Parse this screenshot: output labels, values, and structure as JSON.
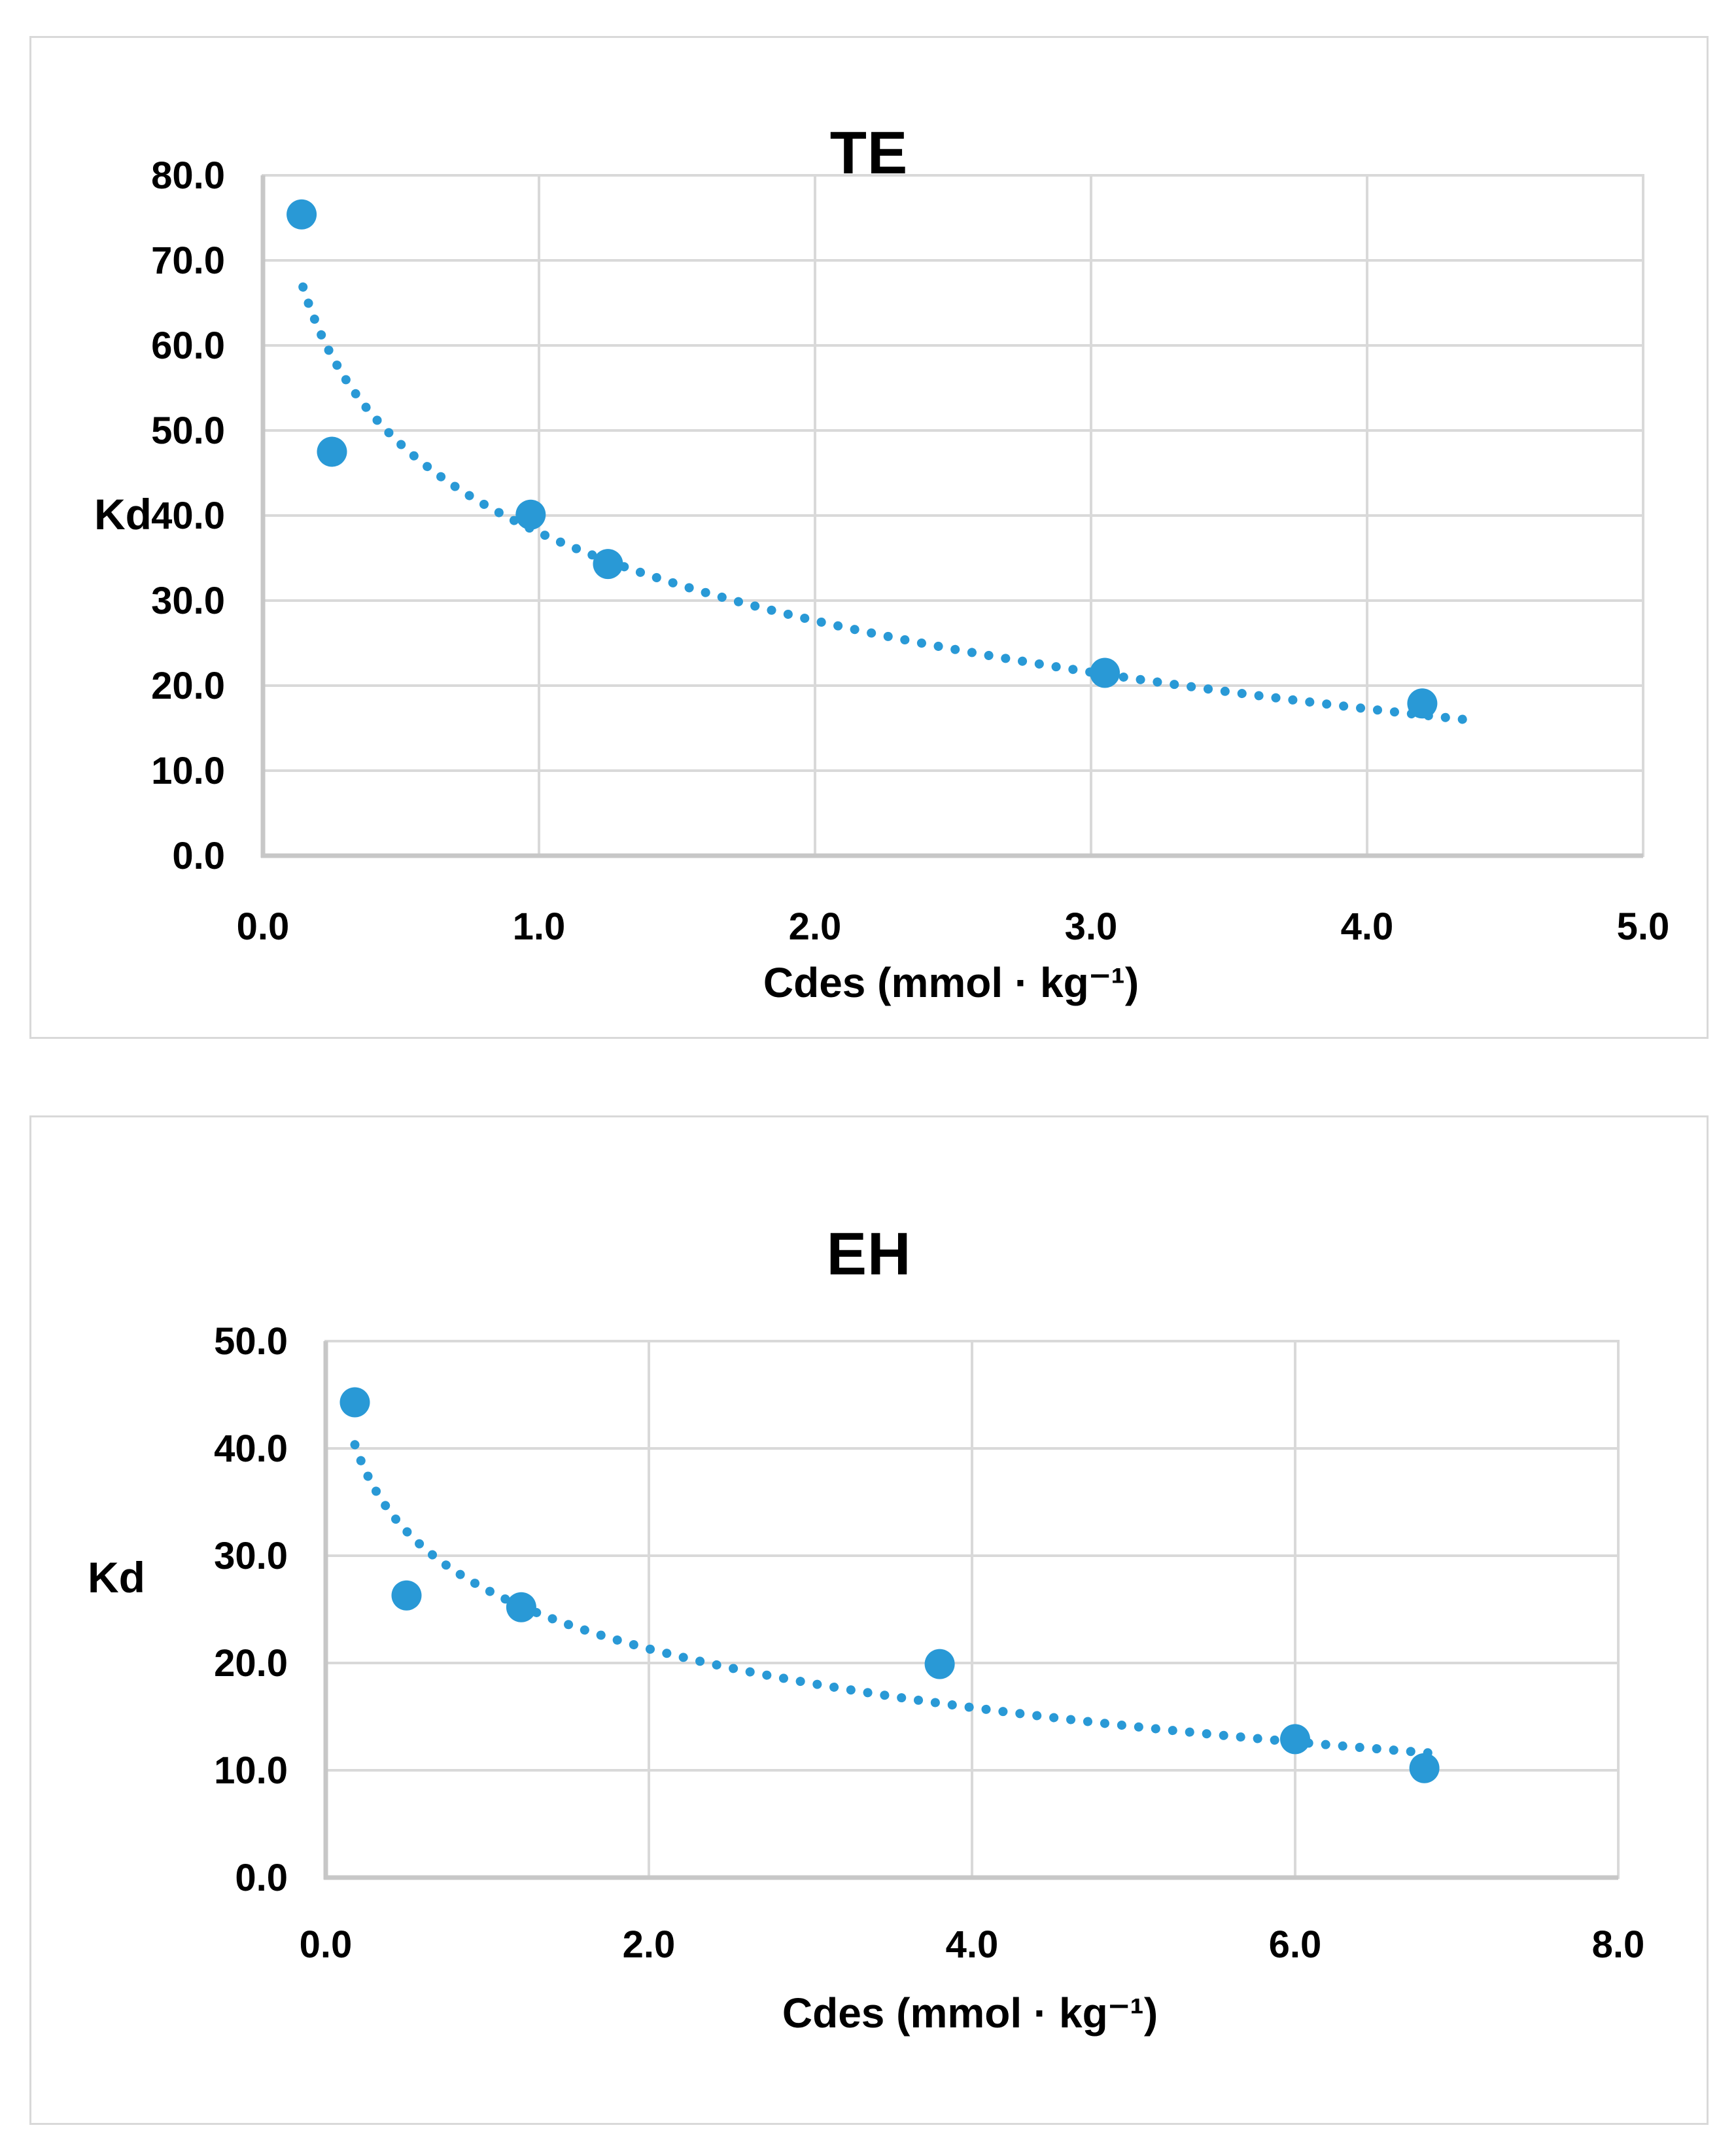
{
  "page": {
    "background": "#FFFFFF",
    "panel_border_color": "#D9D9D9",
    "gridline_color": "#D9D9D9",
    "axis_line_color": "#C7C7C7",
    "accent_blue": "#2999D6"
  },
  "chart_data": [
    {
      "type": "scatter",
      "title": "TE",
      "xlabel": "Cdes (mmol · kg⁻¹)",
      "ylabel": "Kd",
      "xlim": [
        0.0,
        5.0
      ],
      "ylim": [
        0.0,
        80.0
      ],
      "xticks": [
        0.0,
        1.0,
        2.0,
        3.0,
        4.0,
        5.0
      ],
      "yticks": [
        0.0,
        10.0,
        20.0,
        30.0,
        40.0,
        50.0,
        60.0,
        70.0,
        80.0
      ],
      "tick_decimals": 1,
      "grid": true,
      "legend_position": "none",
      "series": [
        {
          "name": "Kd",
          "marker_color": "#2999D6",
          "points": [
            [
              0.14,
              75.4
            ],
            [
              0.25,
              47.5
            ],
            [
              0.97,
              40.1
            ],
            [
              1.25,
              34.3
            ],
            [
              3.05,
              21.5
            ],
            [
              4.2,
              17.9
            ]
          ]
        }
      ],
      "trendline": {
        "style": "dotted",
        "color": "#2999D6",
        "model": "logarithmic",
        "a": 38.0,
        "b": -14.95,
        "x_start": 0.145,
        "x_end": 4.35
      }
    },
    {
      "type": "scatter",
      "title": "EH",
      "xlabel": "Cdes (mmol · kg⁻¹)",
      "ylabel": "Kd",
      "xlim": [
        0.0,
        8.0
      ],
      "ylim": [
        0.0,
        50.0
      ],
      "xticks": [
        0.0,
        2.0,
        4.0,
        6.0,
        8.0
      ],
      "yticks": [
        0.0,
        10.0,
        20.0,
        30.0,
        40.0,
        50.0
      ],
      "tick_decimals": 1,
      "grid": true,
      "legend_position": "none",
      "series": [
        {
          "name": "Kd",
          "marker_color": "#2999D6",
          "points": [
            [
              0.18,
              44.3
            ],
            [
              0.5,
              26.3
            ],
            [
              1.21,
              25.2
            ],
            [
              3.8,
              19.9
            ],
            [
              6.0,
              12.9
            ],
            [
              6.8,
              10.2
            ]
          ]
        }
      ],
      "trendline": {
        "style": "dotted",
        "color": "#2999D6",
        "model": "logarithmic",
        "a": 26.8,
        "b": -7.9,
        "x_start": 0.18,
        "x_end": 6.9
      }
    }
  ]
}
